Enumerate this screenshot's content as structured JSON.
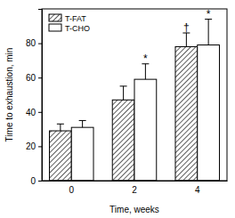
{
  "chart_data": {
    "type": "bar",
    "x_label": "Time, weeks",
    "y_label": "Time to exhaustion, min",
    "categories": [
      "0",
      "2",
      "4"
    ],
    "series": [
      {
        "name": "T-FAT",
        "color": "#333333",
        "values": [
          29,
          47,
          78
        ],
        "errors": [
          4,
          8,
          8
        ]
      },
      {
        "name": "T-CHO",
        "color": "#ffffff",
        "values": [
          31,
          59,
          79
        ],
        "errors": [
          4,
          9,
          15
        ]
      }
    ],
    "annotations": [
      {
        "text": "*",
        "series": "T-CHO",
        "category": "2"
      },
      {
        "text": "†",
        "series": "T-FAT",
        "category": "4"
      },
      {
        "text": "*",
        "series": "T-CHO",
        "category": "4"
      }
    ],
    "ylim": [
      0,
      100
    ],
    "yticks": [
      0,
      20,
      40,
      60,
      80
    ],
    "legend": "upper left",
    "grid": false
  }
}
